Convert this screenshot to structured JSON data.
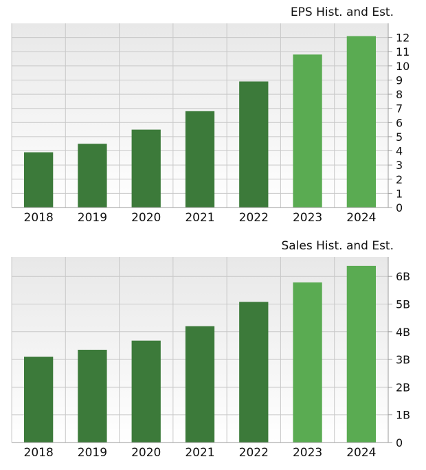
{
  "colors": {
    "historical_bar": "#3c7a3a",
    "estimate_bar": "#5aab52",
    "grid": "#c8c8c8",
    "axis": "#9a9a9a",
    "plot_bg_top": "#e8e8e8",
    "plot_bg_bottom": "#ffffff"
  },
  "chart_data": [
    {
      "type": "bar",
      "title": "EPS Hist. and Est.",
      "xlabel": "",
      "ylabel": "",
      "categories": [
        "2018",
        "2019",
        "2020",
        "2021",
        "2022",
        "2023",
        "2024"
      ],
      "values": [
        3.9,
        4.5,
        5.5,
        6.8,
        8.9,
        10.8,
        12.1
      ],
      "estimate_flags": [
        false,
        false,
        false,
        false,
        false,
        true,
        true
      ],
      "ylim": [
        0,
        13
      ],
      "yticks": [
        0,
        1,
        2,
        3,
        4,
        5,
        6,
        7,
        8,
        9,
        10,
        11,
        12
      ],
      "ytick_labels": [
        "0",
        "1",
        "2",
        "3",
        "4",
        "5",
        "6",
        "7",
        "8",
        "9",
        "10",
        "11",
        "12"
      ],
      "y_axis_side": "right",
      "grid": true,
      "legend": "none"
    },
    {
      "type": "bar",
      "title": "Sales Hist. and Est.",
      "xlabel": "",
      "ylabel": "",
      "categories": [
        "2018",
        "2019",
        "2020",
        "2021",
        "2022",
        "2023",
        "2024"
      ],
      "values": [
        3100000000,
        3350000000,
        3680000000,
        4200000000,
        5080000000,
        5780000000,
        6380000000
      ],
      "estimate_flags": [
        false,
        false,
        false,
        false,
        false,
        true,
        true
      ],
      "ylim": [
        0,
        6700000000
      ],
      "yticks": [
        0,
        1000000000,
        2000000000,
        3000000000,
        4000000000,
        5000000000,
        6000000000
      ],
      "ytick_labels": [
        "0",
        "1B",
        "2B",
        "3B",
        "4B",
        "5B",
        "6B"
      ],
      "y_axis_side": "right",
      "grid": true,
      "legend": "none"
    }
  ]
}
